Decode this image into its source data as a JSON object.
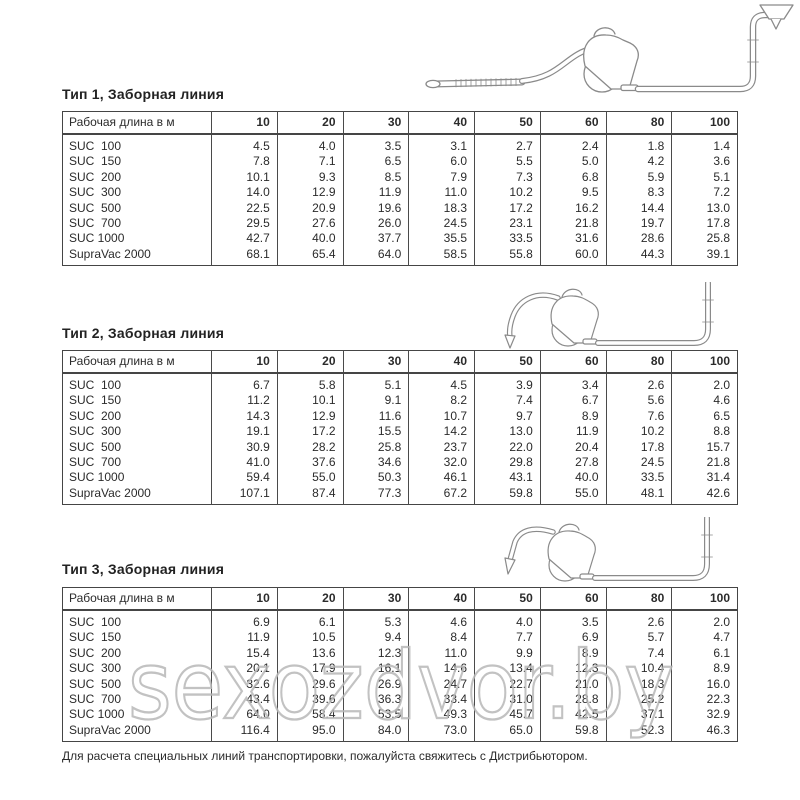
{
  "page": {
    "watermark": "sexozdvor.by",
    "footer_note": "Для расчета специальных линий транспортировки, пожалуйста свяжитесь с Дистрибьютором."
  },
  "colors": {
    "ink": "#2b2b2b",
    "table_border": "#454545",
    "line_art": "#8a8a8a",
    "watermark": "#b8b8b8"
  },
  "tables": [
    {
      "title": "Тип 1, Заборная линия",
      "corner_header": "Рабочая длина в м",
      "columns": [
        "10",
        "20",
        "30",
        "40",
        "50",
        "60",
        "80",
        "100"
      ],
      "rows": [
        {
          "label": "SUC  100",
          "values": [
            "4.5",
            "4.0",
            "3.5",
            "3.1",
            "2.7",
            "2.4",
            "1.8",
            "1.4"
          ]
        },
        {
          "label": "SUC  150",
          "values": [
            "7.8",
            "7.1",
            "6.5",
            "6.0",
            "5.5",
            "5.0",
            "4.2",
            "3.6"
          ]
        },
        {
          "label": "SUC  200",
          "values": [
            "10.1",
            "9.3",
            "8.5",
            "7.9",
            "7.3",
            "6.8",
            "5.9",
            "5.1"
          ]
        },
        {
          "label": "SUC  300",
          "values": [
            "14.0",
            "12.9",
            "11.9",
            "11.0",
            "10.2",
            "9.5",
            "8.3",
            "7.2"
          ]
        },
        {
          "label": "SUC  500",
          "values": [
            "22.5",
            "20.9",
            "19.6",
            "18.3",
            "17.2",
            "16.2",
            "14.4",
            "13.0"
          ]
        },
        {
          "label": "SUC  700",
          "values": [
            "29.5",
            "27.6",
            "26.0",
            "24.5",
            "23.1",
            "21.8",
            "19.7",
            "17.8"
          ]
        },
        {
          "label": "SUC 1000",
          "values": [
            "42.7",
            "40.0",
            "37.7",
            "35.5",
            "33.5",
            "31.6",
            "28.6",
            "25.8"
          ]
        },
        {
          "label": "SupraVac 2000",
          "values": [
            "68.1",
            "65.4",
            "64.0",
            "58.5",
            "55.8",
            "60.0",
            "44.3",
            "39.1"
          ]
        }
      ]
    },
    {
      "title": "Тип 2, Заборная линия",
      "corner_header": "Рабочая длина в м",
      "columns": [
        "10",
        "20",
        "30",
        "40",
        "50",
        "60",
        "80",
        "100"
      ],
      "rows": [
        {
          "label": "SUC  100",
          "values": [
            "6.7",
            "5.8",
            "5.1",
            "4.5",
            "3.9",
            "3.4",
            "2.6",
            "2.0"
          ]
        },
        {
          "label": "SUC  150",
          "values": [
            "11.2",
            "10.1",
            "9.1",
            "8.2",
            "7.4",
            "6.7",
            "5.6",
            "4.6"
          ]
        },
        {
          "label": "SUC  200",
          "values": [
            "14.3",
            "12.9",
            "11.6",
            "10.7",
            "9.7",
            "8.9",
            "7.6",
            "6.5"
          ]
        },
        {
          "label": "SUC  300",
          "values": [
            "19.1",
            "17.2",
            "15.5",
            "14.2",
            "13.0",
            "11.9",
            "10.2",
            "8.8"
          ]
        },
        {
          "label": "SUC  500",
          "values": [
            "30.9",
            "28.2",
            "25.8",
            "23.7",
            "22.0",
            "20.4",
            "17.8",
            "15.7"
          ]
        },
        {
          "label": "SUC  700",
          "values": [
            "41.0",
            "37.6",
            "34.6",
            "32.0",
            "29.8",
            "27.8",
            "24.5",
            "21.8"
          ]
        },
        {
          "label": "SUC 1000",
          "values": [
            "59.4",
            "55.0",
            "50.3",
            "46.1",
            "43.1",
            "40.0",
            "33.5",
            "31.4"
          ]
        },
        {
          "label": "SupraVac 2000",
          "values": [
            "107.1",
            "87.4",
            "77.3",
            "67.2",
            "59.8",
            "55.0",
            "48.1",
            "42.6"
          ]
        }
      ]
    },
    {
      "title": "Тип 3, Заборная линия",
      "corner_header": "Рабочая длина в м",
      "columns": [
        "10",
        "20",
        "30",
        "40",
        "50",
        "60",
        "80",
        "100"
      ],
      "rows": [
        {
          "label": "SUC  100",
          "values": [
            "6.9",
            "6.1",
            "5.3",
            "4.6",
            "4.0",
            "3.5",
            "2.6",
            "2.0"
          ]
        },
        {
          "label": "SUC  150",
          "values": [
            "11.9",
            "10.5",
            "9.4",
            "8.4",
            "7.7",
            "6.9",
            "5.7",
            "4.7"
          ]
        },
        {
          "label": "SUC  200",
          "values": [
            "15.4",
            "13.6",
            "12.3",
            "11.0",
            "9.9",
            "8.9",
            "7.4",
            "6.1"
          ]
        },
        {
          "label": "SUC  300",
          "values": [
            "20.1",
            "17.9",
            "16.1",
            "14.6",
            "13.4",
            "12.3",
            "10.4",
            "8.9"
          ]
        },
        {
          "label": "SUC  500",
          "values": [
            "32.6",
            "29.6",
            "26.9",
            "24.7",
            "22.7",
            "21.0",
            "18.3",
            "16.0"
          ]
        },
        {
          "label": "SUC  700",
          "values": [
            "43.4",
            "39.6",
            "36.3",
            "33.4",
            "31.0",
            "28.8",
            "25.2",
            "22.3"
          ]
        },
        {
          "label": "SUC 1000",
          "values": [
            "64.0",
            "58.4",
            "53.5",
            "49.3",
            "45.7",
            "42.5",
            "37.1",
            "32.9"
          ]
        },
        {
          "label": "SupraVac 2000",
          "values": [
            "116.4",
            "95.0",
            "84.0",
            "73.0",
            "65.0",
            "59.8",
            "52.3",
            "46.3"
          ]
        }
      ]
    }
  ]
}
